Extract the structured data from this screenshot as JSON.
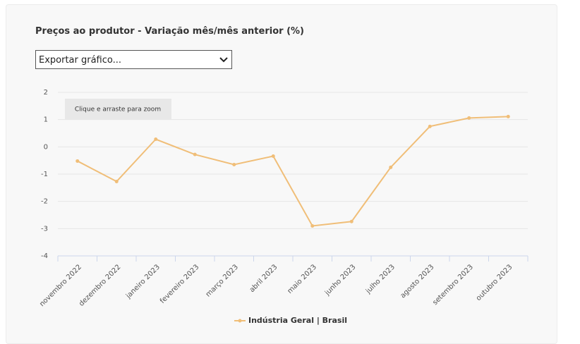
{
  "controls": {
    "export_select": "Exportar gráfico...",
    "zoom_hint": "Clique e arraste para zoom"
  },
  "chart_data": {
    "type": "line",
    "title": "Preços ao produtor - Variação mês/mês anterior (%)",
    "categories": [
      "novembro 2022",
      "dezembro 2022",
      "janeiro 2023",
      "fevereiro 2023",
      "março 2023",
      "abril 2023",
      "maio 2023",
      "junho 2023",
      "julho 2023",
      "agosto 2023",
      "setembro 2023",
      "outubro 2023"
    ],
    "series": [
      {
        "name": "Indústria Geral | Brasil",
        "color": "#f0be78",
        "values": [
          -0.52,
          -1.27,
          0.28,
          -0.28,
          -0.65,
          -0.34,
          -2.9,
          -2.74,
          -0.75,
          0.75,
          1.06,
          1.11
        ]
      }
    ],
    "ylim": [
      -4,
      2
    ],
    "yticks": [
      -4,
      -3,
      -2,
      -1,
      0,
      1,
      2
    ],
    "grid": true,
    "legend": "bottom"
  }
}
